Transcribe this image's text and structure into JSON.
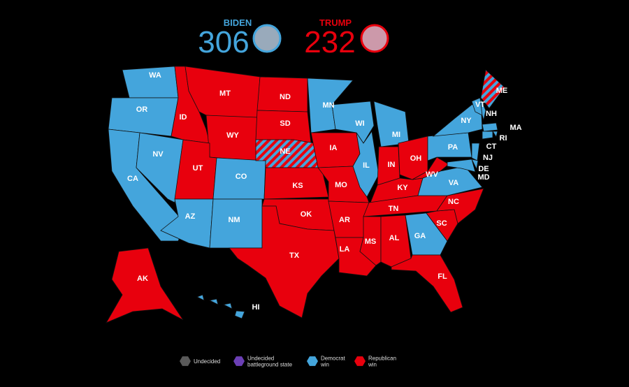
{
  "header": {
    "candidates": [
      {
        "name": "BIDEN",
        "votes": "306",
        "color": "#44a5dc"
      },
      {
        "name": "TRUMP",
        "votes": "232",
        "color": "#e8000d"
      }
    ]
  },
  "colors": {
    "democrat": "#44a5dc",
    "republican": "#e8000d"
  },
  "states": [
    {
      "label": "WA",
      "win": "democrat"
    },
    {
      "label": "OR",
      "win": "democrat"
    },
    {
      "label": "CA",
      "win": "democrat"
    },
    {
      "label": "NV",
      "win": "democrat"
    },
    {
      "label": "ID",
      "win": "republican"
    },
    {
      "label": "MT",
      "win": "republican"
    },
    {
      "label": "WY",
      "win": "republican"
    },
    {
      "label": "UT",
      "win": "republican"
    },
    {
      "label": "CO",
      "win": "democrat"
    },
    {
      "label": "AZ",
      "win": "democrat"
    },
    {
      "label": "NM",
      "win": "democrat"
    },
    {
      "label": "ND",
      "win": "republican"
    },
    {
      "label": "SD",
      "win": "republican"
    },
    {
      "label": "NE",
      "win": "split"
    },
    {
      "label": "KS",
      "win": "republican"
    },
    {
      "label": "OK",
      "win": "republican"
    },
    {
      "label": "TX",
      "win": "republican"
    },
    {
      "label": "MN",
      "win": "democrat"
    },
    {
      "label": "IA",
      "win": "republican"
    },
    {
      "label": "MO",
      "win": "republican"
    },
    {
      "label": "AR",
      "win": "republican"
    },
    {
      "label": "LA",
      "win": "republican"
    },
    {
      "label": "WI",
      "win": "democrat"
    },
    {
      "label": "IL",
      "win": "democrat"
    },
    {
      "label": "MI",
      "win": "democrat"
    },
    {
      "label": "IN",
      "win": "republican"
    },
    {
      "label": "OH",
      "win": "republican"
    },
    {
      "label": "KY",
      "win": "republican"
    },
    {
      "label": "TN",
      "win": "republican"
    },
    {
      "label": "MS",
      "win": "republican"
    },
    {
      "label": "AL",
      "win": "republican"
    },
    {
      "label": "GA",
      "win": "democrat"
    },
    {
      "label": "FL",
      "win": "republican"
    },
    {
      "label": "SC",
      "win": "republican"
    },
    {
      "label": "NC",
      "win": "republican"
    },
    {
      "label": "VA",
      "win": "democrat"
    },
    {
      "label": "WV",
      "win": "republican"
    },
    {
      "label": "PA",
      "win": "democrat"
    },
    {
      "label": "NY",
      "win": "democrat"
    },
    {
      "label": "VT",
      "win": "democrat"
    },
    {
      "label": "NH",
      "win": "democrat"
    },
    {
      "label": "ME",
      "win": "split"
    },
    {
      "label": "MA",
      "win": "democrat"
    },
    {
      "label": "RI",
      "win": "democrat"
    },
    {
      "label": "CT",
      "win": "democrat"
    },
    {
      "label": "NJ",
      "win": "democrat"
    },
    {
      "label": "DE",
      "win": "democrat"
    },
    {
      "label": "MD",
      "win": "democrat"
    },
    {
      "label": "AK",
      "win": "republican"
    },
    {
      "label": "HI",
      "win": "democrat"
    }
  ],
  "legend": [
    {
      "lines": [
        "Undecided"
      ],
      "color": "#5a5a5a"
    },
    {
      "lines": [
        "Undecided",
        "battleground state"
      ],
      "color": "#6b3fb5"
    },
    {
      "lines": [
        "Democrat",
        "win"
      ],
      "color": "#44a5dc"
    },
    {
      "lines": [
        "Republican",
        "win"
      ],
      "color": "#e8000d"
    }
  ]
}
